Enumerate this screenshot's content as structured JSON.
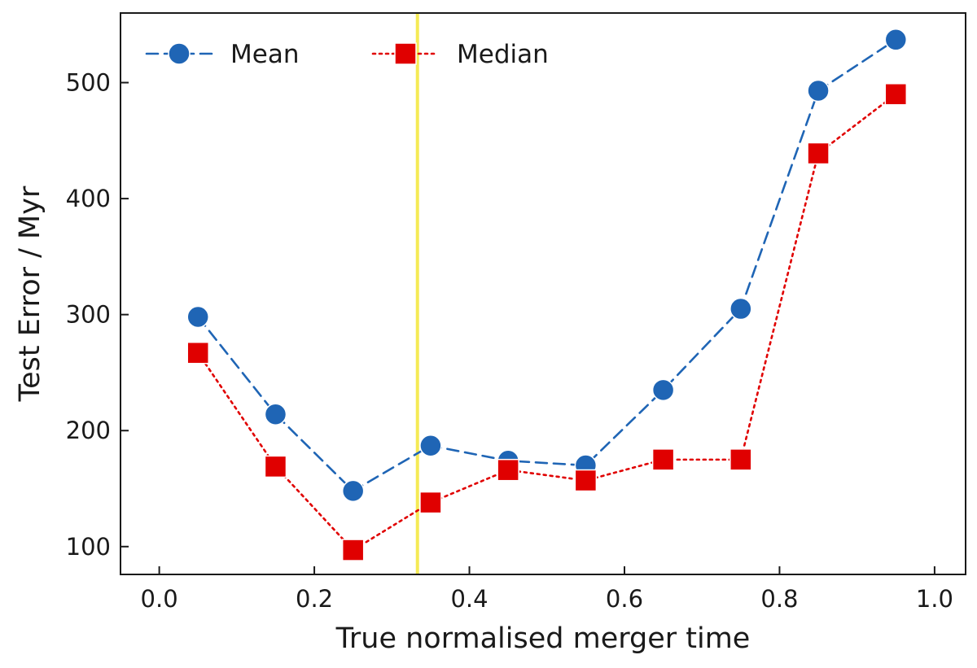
{
  "chart_data": {
    "type": "line",
    "title": "",
    "xlabel": "True normalised merger time",
    "ylabel": "Test Error / Myr",
    "xlim": [
      -0.05,
      1.04
    ],
    "ylim": [
      76,
      560
    ],
    "xticks": [
      0.0,
      0.2,
      0.4,
      0.6,
      0.8,
      1.0
    ],
    "xtick_labels": [
      "0.0",
      "0.2",
      "0.4",
      "0.6",
      "0.8",
      "1.0"
    ],
    "yticks": [
      100,
      200,
      300,
      400,
      500
    ],
    "ytick_labels": [
      "100",
      "200",
      "300",
      "400",
      "500"
    ],
    "grid": false,
    "legend": {
      "placement": "top-left",
      "columns": 2
    },
    "x": [
      0.05,
      0.15,
      0.25,
      0.35,
      0.45,
      0.55,
      0.65,
      0.75,
      0.85,
      0.95
    ],
    "series": [
      {
        "name": "Mean",
        "color": "#1f65b5",
        "marker": "circle",
        "line": "dashed",
        "values": [
          298,
          214,
          148,
          187,
          174,
          170,
          235,
          305,
          493,
          537
        ]
      },
      {
        "name": "Median",
        "color": "#e00000",
        "marker": "square",
        "line": "dotted",
        "values": [
          267,
          169,
          97,
          138,
          166,
          157,
          175,
          175,
          439,
          490
        ]
      }
    ],
    "vline": {
      "x": 0.333,
      "color": "#f5ea55"
    }
  }
}
